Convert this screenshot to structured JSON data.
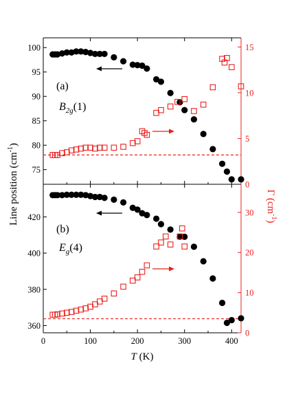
{
  "chart_data": [
    {
      "type": "scatter",
      "panel_label": "(a)",
      "mode_label": {
        "main": "B",
        "sub": "2g",
        "tail": "(1)"
      },
      "xlim": [
        0,
        420
      ],
      "y_left_lim": [
        72,
        102
      ],
      "y_right_lim": [
        0,
        16
      ],
      "y_left_ticks": [
        75,
        80,
        85,
        90,
        95,
        100
      ],
      "y_right_ticks": [
        0,
        5,
        10,
        15
      ],
      "reference_line_right": 3.2,
      "series": [
        {
          "axis": "left",
          "marker": "filled-circle",
          "color": "#000000",
          "x": [
            20,
            25,
            30,
            40,
            50,
            60,
            70,
            80,
            90,
            100,
            110,
            120,
            130,
            150,
            170,
            190,
            200,
            210,
            220,
            240,
            250,
            270,
            290,
            300,
            320,
            340,
            360,
            380,
            390,
            400,
            420
          ],
          "y": [
            98.6,
            98.6,
            98.6,
            98.8,
            99.0,
            99.0,
            99.2,
            99.2,
            99.1,
            98.9,
            98.7,
            98.7,
            98.7,
            98.0,
            97.2,
            96.5,
            96.4,
            96.3,
            95.7,
            93.5,
            93.0,
            90.7,
            88.8,
            87.2,
            85.3,
            82.3,
            79.2,
            76.2,
            74.6,
            73.0,
            73.0
          ]
        },
        {
          "axis": "right",
          "marker": "open-square",
          "color": "#e8201c",
          "x": [
            20,
            25,
            30,
            40,
            50,
            60,
            70,
            80,
            90,
            100,
            110,
            120,
            130,
            150,
            170,
            190,
            200,
            210,
            215,
            220,
            240,
            250,
            270,
            285,
            300,
            320,
            340,
            360,
            380,
            385,
            390,
            400,
            420
          ],
          "y": [
            3.2,
            3.2,
            3.2,
            3.4,
            3.5,
            3.7,
            3.8,
            3.9,
            4.0,
            4.0,
            3.9,
            4.0,
            4.0,
            4.0,
            4.1,
            4.5,
            4.7,
            5.8,
            5.6,
            5.4,
            7.8,
            8.1,
            8.5,
            9.0,
            9.3,
            8.0,
            8.7,
            10.6,
            13.7,
            13.3,
            13.8,
            12.8,
            10.7
          ]
        }
      ]
    },
    {
      "type": "scatter",
      "panel_label": "(b)",
      "mode_label": {
        "main": "E",
        "sub": "g",
        "tail": "(4)"
      },
      "xlim": [
        0,
        420
      ],
      "y_left_lim": [
        356,
        438
      ],
      "y_right_lim": [
        0,
        37
      ],
      "y_left_ticks": [
        360,
        380,
        400,
        420
      ],
      "y_right_ticks": [
        0,
        10,
        20,
        30
      ],
      "reference_line_right": 3.5,
      "series": [
        {
          "axis": "left",
          "marker": "filled-circle",
          "color": "#000000",
          "x": [
            20,
            25,
            30,
            40,
            50,
            60,
            70,
            80,
            90,
            100,
            110,
            120,
            130,
            150,
            170,
            190,
            200,
            210,
            220,
            240,
            250,
            270,
            290,
            300,
            320,
            340,
            360,
            380,
            390,
            400,
            420
          ],
          "y": [
            432,
            432,
            432,
            432,
            432.2,
            432.2,
            432.2,
            432.2,
            432.0,
            431.5,
            431.0,
            431.0,
            430.5,
            429.5,
            428,
            425,
            424,
            422,
            421,
            419,
            416,
            413,
            409,
            409,
            403.5,
            395.5,
            386,
            372.5,
            361.5,
            363,
            364
          ]
        },
        {
          "axis": "right",
          "marker": "open-square",
          "color": "#e8201c",
          "x": [
            20,
            25,
            30,
            40,
            50,
            60,
            70,
            80,
            90,
            100,
            110,
            120,
            130,
            150,
            170,
            190,
            200,
            210,
            220,
            240,
            250,
            260,
            270,
            290,
            295,
            300
          ],
          "y": [
            4.5,
            4.5,
            4.6,
            4.8,
            5.0,
            5.2,
            5.5,
            5.8,
            6.1,
            6.5,
            7.1,
            7.8,
            8.5,
            9.8,
            11.5,
            13.0,
            13.8,
            15.2,
            16.8,
            21.5,
            22.5,
            24.0,
            22.0,
            24.0,
            26.0,
            21.5
          ]
        }
      ]
    }
  ],
  "figure": {
    "xlabel_var": "T",
    "xlabel_unit": " (K)",
    "ylabel_left": "Line position (cm",
    "ylabel_left_sup": "-1",
    "ylabel_left_close": ")",
    "ylabel_right": "Γ (cm",
    "ylabel_right_sup": "-1",
    "ylabel_right_close": ")",
    "x_ticks": [
      0,
      100,
      200,
      300,
      400
    ],
    "colors": {
      "left_axis": "#000000",
      "right_axis": "#e8201c"
    }
  }
}
